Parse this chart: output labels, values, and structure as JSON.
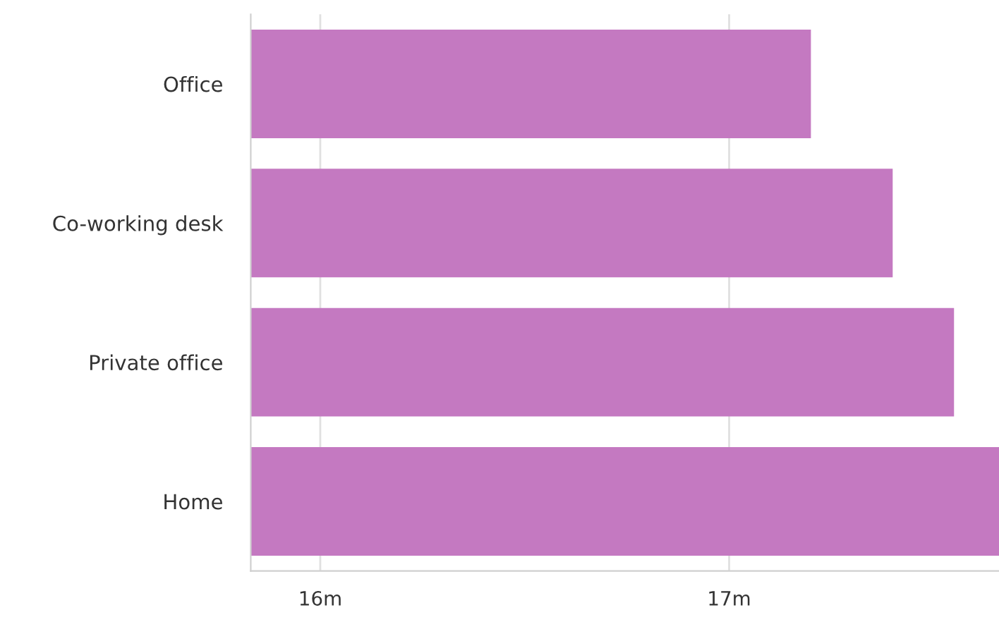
{
  "chart_data": {
    "type": "bar",
    "orientation": "horizontal",
    "categories": [
      "Office",
      "Co-working desk",
      "Private office",
      "Home"
    ],
    "values": [
      17.2,
      17.4,
      17.55,
      17.66
    ],
    "color": "#c479c1",
    "xlim": [
      15.83,
      17.66
    ],
    "xticks": [
      {
        "value": 16,
        "label": "16m"
      },
      {
        "value": 17,
        "label": "17m"
      }
    ],
    "grid": "x"
  }
}
